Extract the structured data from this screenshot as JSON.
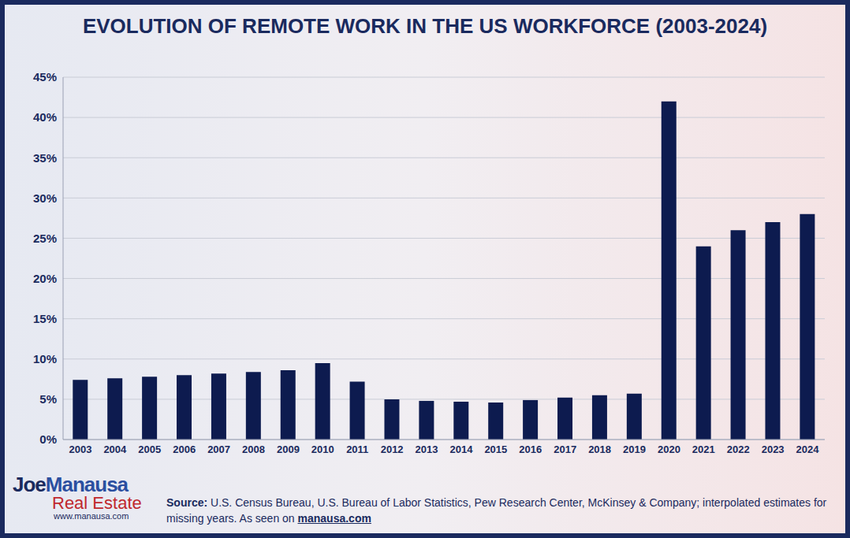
{
  "chart_data": {
    "type": "bar",
    "title": "EVOLUTION OF REMOTE WORK IN THE US WORKFORCE (2003-2024)",
    "categories": [
      "2003",
      "2004",
      "2005",
      "2006",
      "2007",
      "2008",
      "2009",
      "2010",
      "2011",
      "2012",
      "2013",
      "2014",
      "2015",
      "2016",
      "2017",
      "2018",
      "2019",
      "2020",
      "2021",
      "2022",
      "2023",
      "2024"
    ],
    "values": [
      7.4,
      7.6,
      7.8,
      8.0,
      8.2,
      8.4,
      8.6,
      9.5,
      7.2,
      5.0,
      4.8,
      4.7,
      4.6,
      4.9,
      5.2,
      5.5,
      5.7,
      42,
      24,
      26,
      27,
      28
    ],
    "color": "#0d1b4f",
    "ylim": [
      0,
      45
    ],
    "yticks": [
      {
        "value": 0,
        "label": "0%"
      },
      {
        "value": 5,
        "label": "5%"
      },
      {
        "value": 10,
        "label": "10%"
      },
      {
        "value": 15,
        "label": "15%"
      },
      {
        "value": 20,
        "label": "20%"
      },
      {
        "value": 25,
        "label": "25%"
      },
      {
        "value": 30,
        "label": "30%"
      },
      {
        "value": 35,
        "label": "35%"
      },
      {
        "value": 40,
        "label": "40%"
      },
      {
        "value": 45,
        "label": "45%"
      }
    ],
    "grid": true
  },
  "logo": {
    "name_first": "Joe",
    "name_last": "Manausa",
    "line2": "Real Estate",
    "url": "www.manausa.com"
  },
  "source": {
    "label": "Source:",
    "text": "U.S. Census Bureau, U.S. Bureau of Labor Statistics, Pew Research Center, McKinsey & Company; interpolated estimates for missing years. As seen on",
    "link": "manausa.com"
  }
}
